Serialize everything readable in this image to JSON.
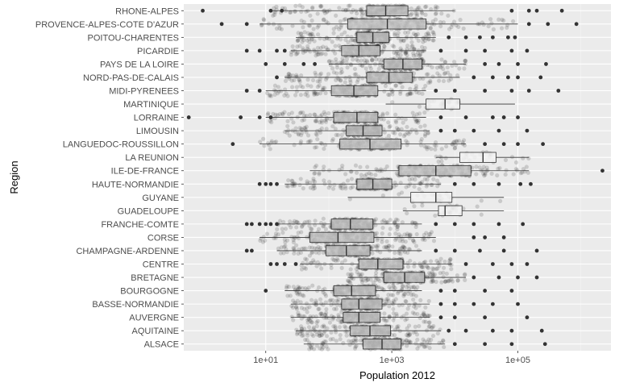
{
  "chart_data": {
    "type": "boxplot",
    "xlabel": "Population 2012",
    "ylabel": "Region",
    "x_scale": "log10",
    "xlim": [
      0.5,
      3000000
    ],
    "x_ticks": [
      {
        "value": 10,
        "label": "1e+01"
      },
      {
        "value": 1000,
        "label": "1e+03"
      },
      {
        "value": 100000,
        "label": "1e+05"
      }
    ],
    "grid": true,
    "colors": {
      "panel": "#ebebeb",
      "grid_major": "#ffffff",
      "grid_minor": "#f5f5f5",
      "points": "#000000",
      "box_default": "#c6c6c6",
      "box_overseas": "#f2f2f2"
    },
    "categories": [
      "RHONE-ALPES",
      "PROVENCE-ALPES-COTE D'AZUR",
      "POITOU-CHARENTES",
      "PICARDIE",
      "PAYS DE LA LOIRE",
      "NORD-PAS-DE-CALAIS",
      "MIDI-PYRENEES",
      "MARTINIQUE",
      "LORRAINE",
      "LIMOUSIN",
      "LANGUEDOC-ROUSSILLON",
      "LA REUNION",
      "ILE-DE-FRANCE",
      "HAUTE-NORMANDIE",
      "GUYANE",
      "GUADELOUPE",
      "FRANCHE-COMTE",
      "CORSE",
      "CHAMPAGNE-ARDENNE",
      "CENTRE",
      "BRETAGNE",
      "BOURGOGNE",
      "BASSE-NORMANDIE",
      "AUVERGNE",
      "AQUITAINE",
      "ALSACE"
    ],
    "series": [
      {
        "name": "RHONE-ALPES",
        "min": 12,
        "q1": 400,
        "median": 800,
        "q3": 1800,
        "max": 10000,
        "overseas": false,
        "outliers": [
          1,
          12,
          18,
          80000,
          150000,
          200000,
          500000
        ]
      },
      {
        "name": "PROVENCE-ALPES-COTE D'AZUR",
        "min": 8,
        "q1": 200,
        "median": 850,
        "q3": 3500,
        "max": 100000,
        "overseas": false,
        "outliers": [
          2,
          5,
          150000,
          300000,
          850000
        ]
      },
      {
        "name": "POITOU-CHARENTES",
        "min": 30,
        "q1": 280,
        "median": 500,
        "q3": 900,
        "max": 5000,
        "overseas": false,
        "outliers": [
          8000,
          15000,
          25000,
          40000,
          70000,
          90000
        ]
      },
      {
        "name": "PICARDIE",
        "min": 25,
        "q1": 160,
        "median": 300,
        "q3": 650,
        "max": 3500,
        "overseas": false,
        "outliers": [
          5,
          8,
          15,
          20,
          6000,
          15000,
          30000,
          80000,
          140000
        ]
      },
      {
        "name": "PAYS DE LA LOIRE",
        "min": 100,
        "q1": 750,
        "median": 1500,
        "q3": 3000,
        "max": 15000,
        "overseas": false,
        "outliers": [
          10,
          20,
          40,
          60,
          30000,
          50000,
          100000,
          280000
        ]
      },
      {
        "name": "NORD-PAS-DE-CALAIS",
        "min": 20,
        "q1": 400,
        "median": 900,
        "q3": 2100,
        "max": 12000,
        "overseas": false,
        "outliers": [
          15,
          20000,
          40000,
          70000,
          100000,
          230000
        ]
      },
      {
        "name": "MIDI-PYRENEES",
        "min": 10,
        "q1": 110,
        "median": 250,
        "q3": 600,
        "max": 3500,
        "overseas": false,
        "outliers": [
          5,
          8,
          5000,
          10000,
          30000,
          80000,
          150000,
          440000
        ]
      },
      {
        "name": "MARTINIQUE",
        "min": 800,
        "q1": 3500,
        "median": 7000,
        "q3": 12000,
        "max": 90000,
        "overseas": true,
        "outliers": []
      },
      {
        "name": "LORRAINE",
        "min": 10,
        "q1": 120,
        "median": 280,
        "q3": 600,
        "max": 3500,
        "overseas": false,
        "outliers": [
          0.6,
          4,
          8,
          12,
          6000,
          15000,
          40000,
          60000,
          100000
        ]
      },
      {
        "name": "LIMOUSIN",
        "min": 20,
        "q1": 190,
        "median": 350,
        "q3": 700,
        "max": 4000,
        "overseas": false,
        "outliers": [
          6000,
          10000,
          20000,
          50000,
          140000
        ]
      },
      {
        "name": "LANGUEDOC-ROUSSILLON",
        "min": 8,
        "q1": 150,
        "median": 450,
        "q3": 1400,
        "max": 15000,
        "overseas": false,
        "outliers": [
          3,
          30000,
          60000,
          100000,
          250000
        ]
      },
      {
        "name": "LA REUNION",
        "min": 5000,
        "q1": 12000,
        "median": 28000,
        "q3": 45000,
        "max": 150000,
        "overseas": true,
        "outliers": []
      },
      {
        "name": "ILE-DE-FRANCE",
        "min": 50,
        "q1": 1300,
        "median": 5000,
        "q3": 18000,
        "max": 150000,
        "overseas": false,
        "outliers": [
          2200000
        ]
      },
      {
        "name": "HAUTE-NORMANDIE",
        "min": 20,
        "q1": 280,
        "median": 500,
        "q3": 1000,
        "max": 6000,
        "overseas": false,
        "outliers": [
          8,
          10,
          12,
          15,
          10000,
          20000,
          50000,
          110000,
          160000
        ]
      },
      {
        "name": "GUYANE",
        "min": 200,
        "q1": 2000,
        "median": 5000,
        "q3": 9000,
        "max": 60000,
        "overseas": true,
        "outliers": []
      },
      {
        "name": "GUADELOUPE",
        "min": 1500,
        "q1": 5500,
        "median": 7000,
        "q3": 13000,
        "max": 60000,
        "overseas": true,
        "outliers": []
      },
      {
        "name": "FRANCHE-COMTE",
        "min": 15,
        "q1": 110,
        "median": 220,
        "q3": 500,
        "max": 3000,
        "overseas": false,
        "outliers": [
          5,
          6,
          8,
          10,
          12,
          15,
          5000,
          10000,
          20000,
          50000,
          120000
        ]
      },
      {
        "name": "CORSE",
        "min": 8,
        "q1": 50,
        "median": 140,
        "q3": 520,
        "max": 5000,
        "overseas": false,
        "outliers": [
          20000,
          30000,
          60000
        ]
      },
      {
        "name": "CHAMPAGNE-ARDENNE",
        "min": 15,
        "q1": 90,
        "median": 190,
        "q3": 450,
        "max": 3000,
        "overseas": false,
        "outliers": [
          5,
          6,
          5000,
          10000,
          25000,
          60000,
          200000
        ]
      },
      {
        "name": "CENTRE",
        "min": 35,
        "q1": 300,
        "median": 600,
        "q3": 1500,
        "max": 9000,
        "overseas": false,
        "outliers": [
          12,
          15,
          20,
          30,
          15000,
          40000,
          80000,
          140000
        ]
      },
      {
        "name": "BRETAGNE",
        "min": 200,
        "q1": 750,
        "median": 1600,
        "q3": 3300,
        "max": 15000,
        "overseas": false,
        "outliers": [
          20000,
          50000,
          100000,
          200000
        ]
      },
      {
        "name": "BOURGOGNE",
        "min": 20,
        "q1": 120,
        "median": 230,
        "q3": 550,
        "max": 3000,
        "overseas": false,
        "outliers": [
          10,
          6000,
          10000,
          30000,
          80000
        ]
      },
      {
        "name": "BASSE-NORMANDIE",
        "min": 25,
        "q1": 160,
        "median": 300,
        "q3": 700,
        "max": 4000,
        "overseas": false,
        "outliers": [
          6000,
          10000,
          20000,
          40000,
          100000
        ]
      },
      {
        "name": "AUVERGNE",
        "min": 25,
        "q1": 170,
        "median": 300,
        "q3": 650,
        "max": 4000,
        "overseas": false,
        "outliers": [
          6000,
          10000,
          30000,
          140000
        ]
      },
      {
        "name": "AQUITAINE",
        "min": 30,
        "q1": 220,
        "median": 450,
        "q3": 950,
        "max": 6000,
        "overseas": false,
        "outliers": [
          8000,
          15000,
          40000,
          80000,
          240000
        ]
      },
      {
        "name": "ALSACE",
        "min": 40,
        "q1": 350,
        "median": 700,
        "q3": 1400,
        "max": 7000,
        "overseas": false,
        "outliers": [
          10000,
          30000,
          80000,
          270000
        ]
      }
    ]
  }
}
